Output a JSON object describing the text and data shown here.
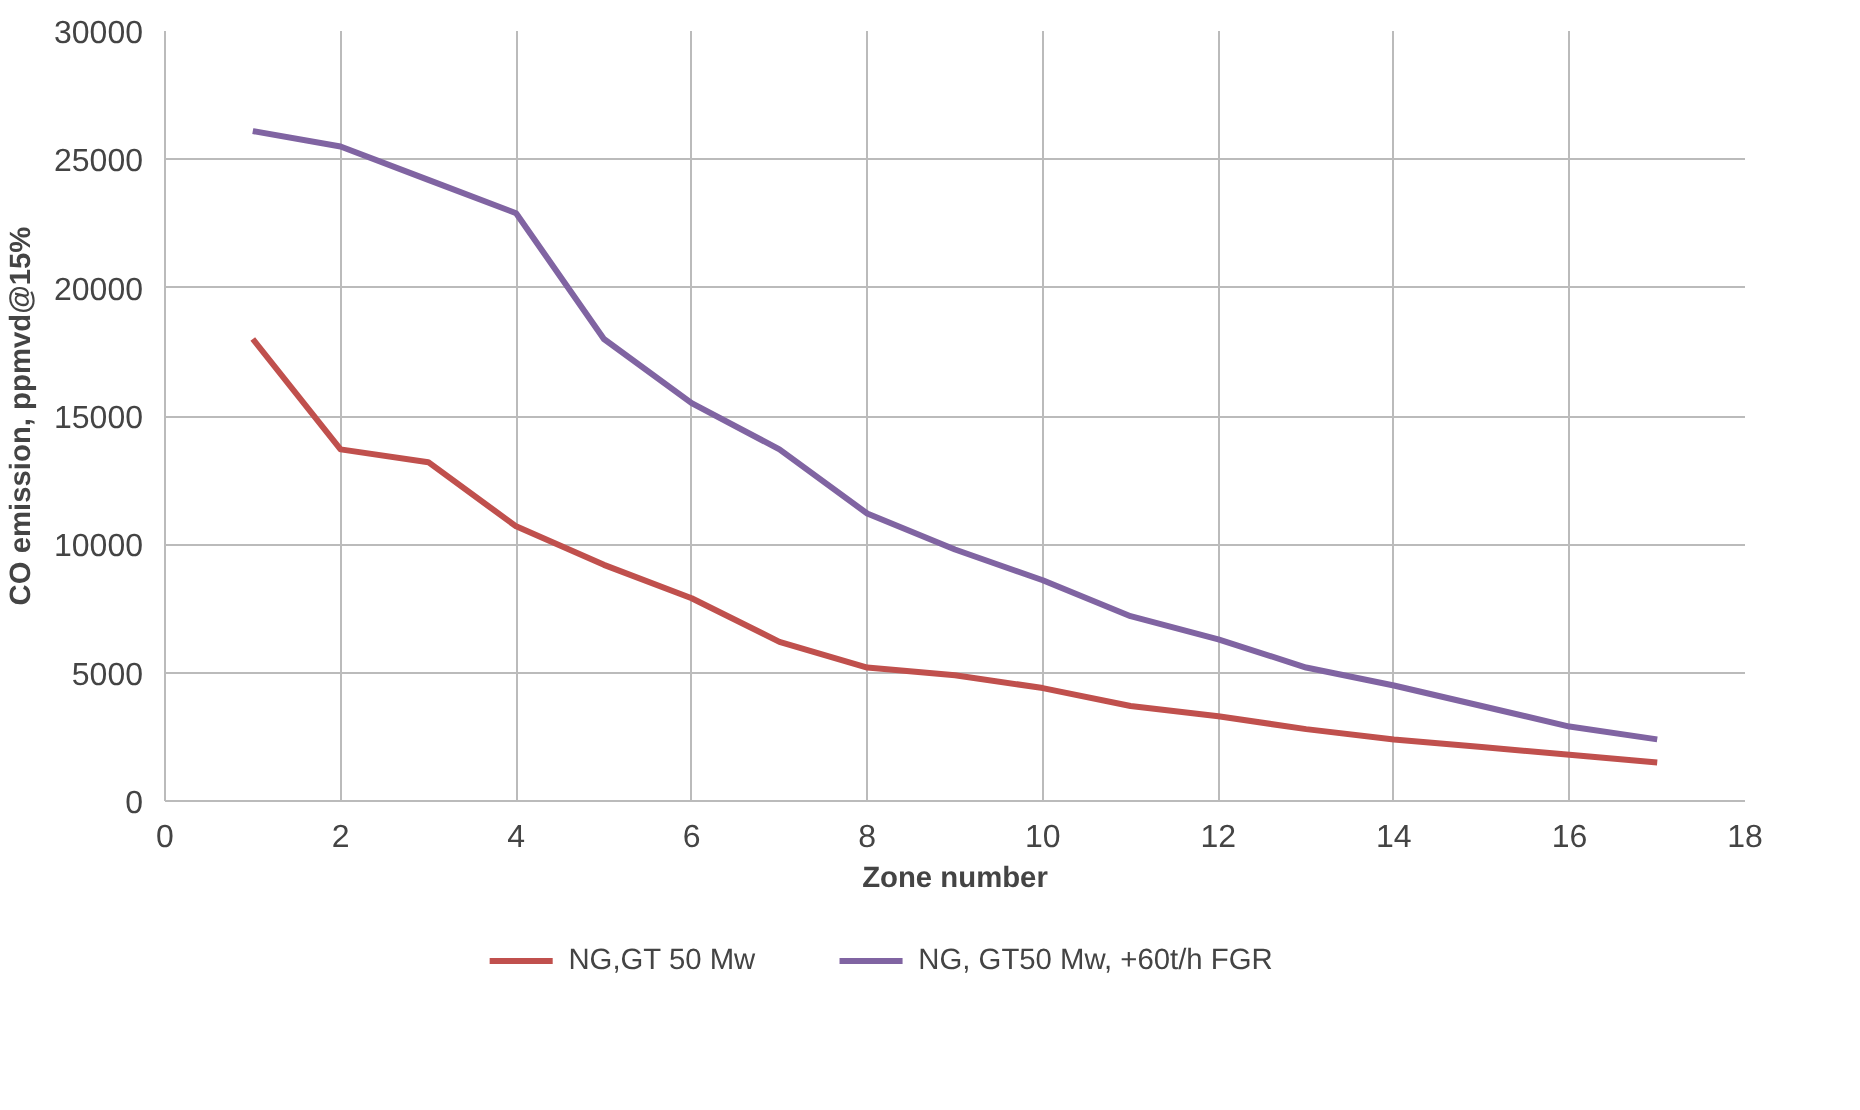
{
  "chart_data": {
    "type": "line",
    "xlabel": "Zone number",
    "ylabel": "CO emission, ppmvd@15%",
    "x": [
      1,
      2,
      3,
      4,
      5,
      6,
      7,
      8,
      9,
      10,
      11,
      12,
      13,
      14,
      15,
      16,
      17
    ],
    "series": [
      {
        "name": "NG,GT 50 Mw",
        "color": "#c0504d",
        "values": [
          18000,
          13700,
          13200,
          10700,
          9200,
          7900,
          6200,
          5200,
          4900,
          4400,
          3700,
          3300,
          2800,
          2400,
          2100,
          1800,
          1500
        ]
      },
      {
        "name": "NG, GT50 Mw, +60t/h FGR",
        "color": "#8064a2",
        "values": [
          26100,
          25500,
          24200,
          22900,
          18000,
          15500,
          13700,
          11200,
          9800,
          8600,
          7200,
          6300,
          5200,
          4500,
          3700,
          2900,
          2400
        ]
      }
    ],
    "xlim": [
      0,
      18
    ],
    "xticks": [
      0,
      2,
      4,
      6,
      8,
      10,
      12,
      14,
      16,
      18
    ],
    "ylim": [
      0,
      30000
    ],
    "yticks": [
      0,
      5000,
      10000,
      15000,
      20000,
      25000,
      30000
    ],
    "grid": true,
    "legend": "bottom",
    "line_style": "solid"
  }
}
